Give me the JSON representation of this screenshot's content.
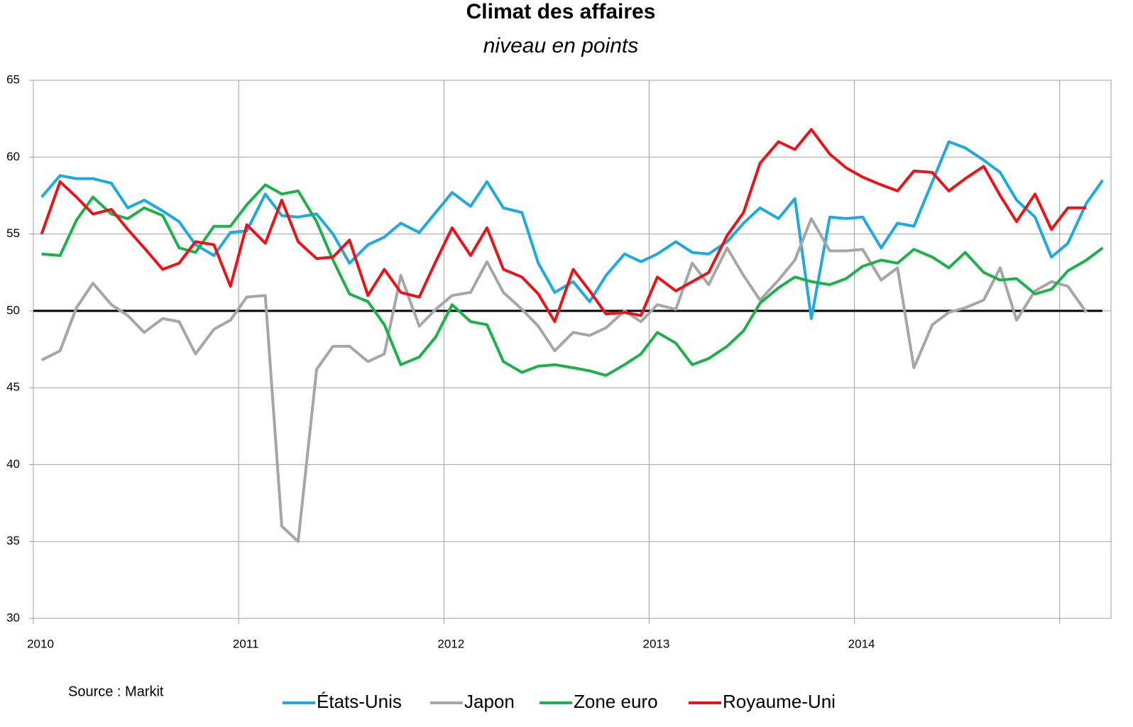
{
  "chart_data": {
    "type": "line",
    "title": "Climat des affaires",
    "subtitle": "niveau en points",
    "source": "Source : Markit",
    "x": [
      2010.04,
      2010.13,
      2010.21,
      2010.29,
      2010.38,
      2010.46,
      2010.54,
      2010.63,
      2010.71,
      2010.79,
      2010.88,
      2010.96,
      2011.04,
      2011.13,
      2011.21,
      2011.29,
      2011.38,
      2011.46,
      2011.54,
      2011.63,
      2011.71,
      2011.79,
      2011.88,
      2011.96,
      2012.04,
      2012.13,
      2012.21,
      2012.29,
      2012.38,
      2012.46,
      2012.54,
      2012.63,
      2012.71,
      2012.79,
      2012.88,
      2012.96,
      2013.04,
      2013.13,
      2013.21,
      2013.29,
      2013.38,
      2013.46,
      2013.54,
      2013.63,
      2013.71,
      2013.79,
      2013.88,
      2013.96,
      2014.04,
      2014.13,
      2014.21,
      2014.29,
      2014.38,
      2014.46,
      2014.54,
      2014.63,
      2014.71,
      2014.79,
      2014.88,
      2014.96,
      2015.04,
      2015.13,
      2015.21
    ],
    "series": [
      {
        "name": "États-Unis",
        "color": "#1fa9e1",
        "values": [
          57.4,
          58.8,
          58.6,
          58.6,
          58.3,
          56.7,
          57.2,
          56.5,
          55.8,
          54.3,
          53.6,
          55.1,
          55.2,
          57.6,
          56.2,
          56.1,
          56.3,
          55.0,
          53.1,
          54.3,
          54.8,
          55.7,
          55.1,
          56.4,
          57.7,
          56.8,
          58.4,
          56.7,
          56.4,
          53.1,
          51.2,
          51.9,
          50.6,
          52.3,
          53.7,
          53.2,
          53.7,
          54.5,
          53.8,
          53.7,
          54.5,
          55.7,
          56.7,
          56.0,
          57.3,
          49.5,
          56.1,
          56.0,
          56.1,
          54.1,
          55.7,
          55.5,
          58.4,
          61.0,
          60.6,
          59.8,
          59.0,
          57.2,
          56.1,
          53.5,
          54.4,
          57.0,
          58.5
        ]
      },
      {
        "name": "Japon",
        "color": "#a6a6a6",
        "values": [
          46.8,
          47.4,
          50.2,
          51.8,
          50.4,
          49.7,
          48.6,
          49.5,
          49.3,
          47.2,
          48.8,
          49.4,
          50.9,
          51.0,
          36.0,
          35.0,
          46.2,
          47.7,
          47.7,
          46.7,
          47.2,
          52.3,
          49.0,
          50.1,
          51.0,
          51.2,
          53.2,
          51.2,
          50.1,
          49.0,
          47.4,
          48.6,
          48.4,
          48.9,
          50.0,
          49.3,
          50.4,
          50.1,
          53.1,
          51.7,
          54.1,
          52.3,
          50.7,
          52.0,
          53.3,
          56.0,
          53.9,
          53.9,
          54.0,
          52.0,
          52.8,
          46.3,
          49.1,
          49.9,
          50.2,
          50.7,
          52.8,
          49.4,
          51.3,
          51.9,
          51.6,
          49.9,
          null
        ]
      },
      {
        "name": "Zone euro",
        "color": "#1db14b",
        "values": [
          53.7,
          53.6,
          55.9,
          57.4,
          56.3,
          56.0,
          56.7,
          56.2,
          54.1,
          53.8,
          55.5,
          55.5,
          56.9,
          58.2,
          57.6,
          57.8,
          55.8,
          53.3,
          51.1,
          50.6,
          49.1,
          46.5,
          47.0,
          48.3,
          50.4,
          49.3,
          49.1,
          46.7,
          46.0,
          46.4,
          46.5,
          46.3,
          46.1,
          45.8,
          46.5,
          47.2,
          48.6,
          47.9,
          46.5,
          46.9,
          47.7,
          48.7,
          50.5,
          51.5,
          52.2,
          51.9,
          51.7,
          52.1,
          52.9,
          53.3,
          53.1,
          54.0,
          53.5,
          52.8,
          53.8,
          52.5,
          52.0,
          52.1,
          51.1,
          51.4,
          52.6,
          53.3,
          54.1
        ]
      },
      {
        "name": "Royaume-Uni",
        "color": "#e8141a",
        "values": [
          55.0,
          58.4,
          57.4,
          56.3,
          56.6,
          55.3,
          54.1,
          52.7,
          53.1,
          54.5,
          54.3,
          51.6,
          55.6,
          54.4,
          57.2,
          54.5,
          53.4,
          53.5,
          54.6,
          51.0,
          52.7,
          51.2,
          50.9,
          53.2,
          55.4,
          53.6,
          55.4,
          52.7,
          52.2,
          51.1,
          49.3,
          52.7,
          51.3,
          49.8,
          49.9,
          49.7,
          52.2,
          51.3,
          51.9,
          52.5,
          54.9,
          56.4,
          59.6,
          61.0,
          60.5,
          61.8,
          60.2,
          59.3,
          58.7,
          58.2,
          57.8,
          59.1,
          59.0,
          57.8,
          58.6,
          59.4,
          57.5,
          55.8,
          57.6,
          55.3,
          56.7,
          56.7,
          null
        ]
      }
    ],
    "xlim": [
      2010,
      2015.25
    ],
    "xticks": [
      2010,
      2011,
      2012,
      2013,
      2014,
      {
        "value": 2015,
        "label": null
      }
    ],
    "ylim": [
      30,
      65
    ],
    "yticks": [
      30,
      35,
      40,
      45,
      50,
      55,
      60,
      65
    ],
    "reference_line": 50,
    "grid": true,
    "legend": "bottom"
  }
}
